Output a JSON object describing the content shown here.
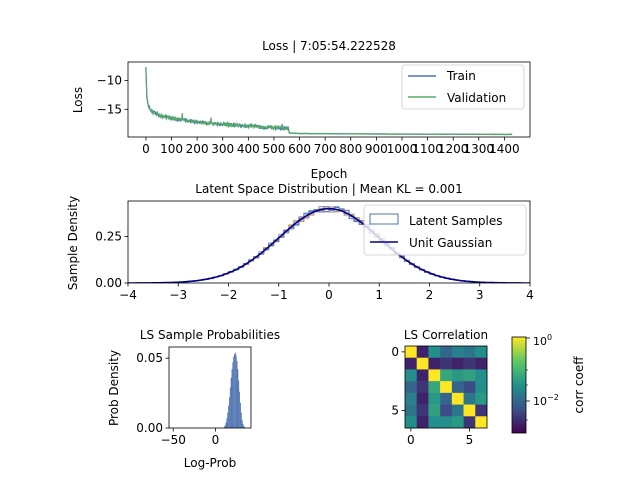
{
  "chart_data": [
    {
      "type": "line",
      "title": "Loss | 7:05:54.222528",
      "xlabel": "Epoch",
      "ylabel": "Loss",
      "xlim": [
        -70,
        1500
      ],
      "ylim": [
        -19.8,
        -6.8
      ],
      "xticks": [
        0,
        100,
        200,
        300,
        400,
        500,
        600,
        700,
        800,
        900,
        1000,
        1100,
        1200,
        1300,
        1400
      ],
      "yticks": [
        -10,
        -15
      ],
      "legend": "top-right",
      "series": [
        {
          "name": "Train",
          "color": "#4c72b0",
          "x": [
            0,
            3,
            8,
            20,
            50,
            100,
            200,
            300,
            400,
            500,
            555,
            560,
            600,
            800,
            1000,
            1200,
            1430
          ],
          "y": [
            -7.6,
            -12.5,
            -14.3,
            -15.3,
            -16.0,
            -16.6,
            -17.2,
            -17.6,
            -17.9,
            -18.2,
            -18.3,
            -19.1,
            -19.2,
            -19.25,
            -19.3,
            -19.32,
            -19.35
          ]
        },
        {
          "name": "Validation",
          "color": "#55a868",
          "x": [
            0,
            3,
            8,
            20,
            50,
            100,
            200,
            300,
            400,
            500,
            555,
            560,
            600,
            800,
            1000,
            1200,
            1430
          ],
          "y": [
            -7.6,
            -12.5,
            -14.3,
            -15.3,
            -16.0,
            -16.6,
            -17.2,
            -17.6,
            -17.9,
            -18.2,
            -18.3,
            -19.1,
            -19.2,
            -19.25,
            -19.3,
            -19.32,
            -19.35
          ]
        }
      ]
    },
    {
      "type": "area",
      "title": "Latent Space Distribution | Mean KL = 0.001",
      "xlabel": "",
      "ylabel": "Sample Density",
      "xlim": [
        -4,
        4
      ],
      "ylim": [
        0,
        0.44
      ],
      "xticks": [
        "−4",
        "−3",
        "−2",
        "−1",
        "0",
        "1",
        "2",
        "3",
        "4"
      ],
      "yticks": [
        "0.00",
        "0.25"
      ],
      "legend": "top-right",
      "series": [
        {
          "name": "Latent Samples",
          "color": "#4c72b0",
          "kind": "step-histogram"
        },
        {
          "name": "Unit Gaussian",
          "color": "#00008b",
          "kind": "line",
          "mean": 0,
          "std": 1
        }
      ]
    },
    {
      "type": "bar",
      "title": "LS Sample Probabilities",
      "xlabel": "Log-Prob",
      "ylabel": "Prob Density",
      "xlim": [
        -55,
        42
      ],
      "ylim": [
        0,
        0.058
      ],
      "xticks": [
        "−50",
        "0"
      ],
      "yticks": [
        "0.00",
        "0.05"
      ],
      "color": "#4c72b0",
      "bin_width": 1,
      "x": [
        10,
        11,
        12,
        13,
        14,
        15,
        16,
        17,
        18,
        19,
        20,
        21,
        22,
        23,
        24,
        25,
        26,
        27,
        28,
        29,
        30,
        31,
        32,
        33,
        34,
        35
      ],
      "values": [
        0.001,
        0.002,
        0.004,
        0.007,
        0.011,
        0.016,
        0.022,
        0.029,
        0.036,
        0.042,
        0.047,
        0.051,
        0.053,
        0.054,
        0.052,
        0.048,
        0.042,
        0.034,
        0.026,
        0.018,
        0.011,
        0.006,
        0.003,
        0.0015,
        0.0007,
        0.0002
      ]
    },
    {
      "type": "heatmap",
      "title": "LS Correlation",
      "xticks": [
        "0",
        "5"
      ],
      "yticks": [
        "0",
        "5"
      ],
      "colorbar_label": "corr coeff",
      "colorbar_ticks": [
        "10^0",
        "10^-2"
      ],
      "colorbar_range": [
        0.001,
        1
      ],
      "colorscale": "viridis",
      "values": [
        [
          1.0,
          0.002,
          0.03,
          0.01,
          0.02,
          0.015,
          0.03
        ],
        [
          0.002,
          1.0,
          0.002,
          0.003,
          0.002,
          0.003,
          0.002
        ],
        [
          0.03,
          0.002,
          1.0,
          0.06,
          0.04,
          0.05,
          0.03
        ],
        [
          0.01,
          0.003,
          0.06,
          1.0,
          0.01,
          0.005,
          0.03
        ],
        [
          0.02,
          0.002,
          0.04,
          0.01,
          1.0,
          0.015,
          0.04
        ],
        [
          0.015,
          0.003,
          0.05,
          0.005,
          0.015,
          1.0,
          0.003
        ],
        [
          0.03,
          0.002,
          0.03,
          0.03,
          0.04,
          0.003,
          1.0
        ]
      ]
    }
  ]
}
